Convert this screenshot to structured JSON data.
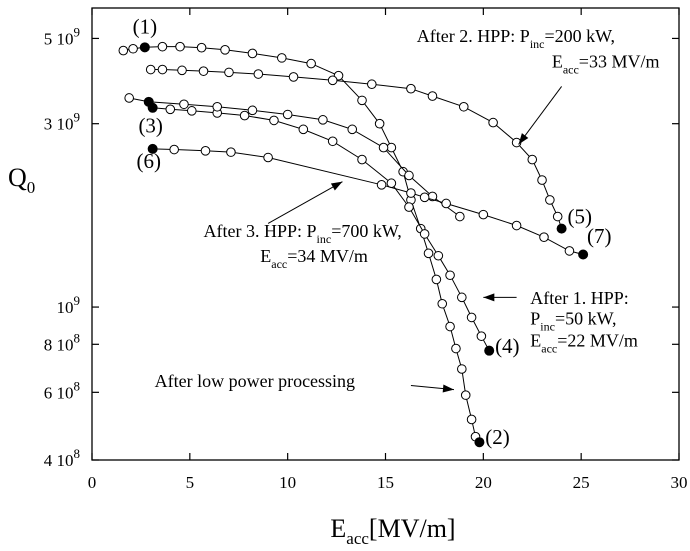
{
  "chart_data": {
    "type": "scatter",
    "xlabel": {
      "main": "E",
      "sub": "acc",
      "rest": "[MV/m]"
    },
    "ylabel": {
      "main": "Q",
      "sub": "0"
    },
    "xlim": [
      0,
      30
    ],
    "ylim": [
      400000000,
      6000000000
    ],
    "yscale": "log",
    "xticks": [
      0,
      5,
      10,
      15,
      20,
      25,
      30
    ],
    "xtick_labels": [
      "0",
      "5",
      "10",
      "15",
      "20",
      "25",
      "30"
    ],
    "yticks": [
      {
        "value": 5000000000,
        "mantissa": "5",
        "exp": "9"
      },
      {
        "value": 3000000000,
        "mantissa": "3",
        "exp": "9"
      },
      {
        "value": 1000000000,
        "mantissa": "",
        "exp": "9"
      },
      {
        "value": 800000000,
        "mantissa": "8",
        "exp": "8"
      },
      {
        "value": 600000000,
        "mantissa": "6",
        "exp": "8"
      },
      {
        "value": 400000000,
        "mantissa": "4",
        "exp": "8"
      }
    ],
    "series": [
      {
        "x": [
          1.6,
          2.1,
          2.7,
          3.6,
          4.5,
          5.6,
          6.8,
          8.2,
          9.7,
          11.2,
          12.6,
          13.8,
          14.7,
          15.3,
          15.9,
          16.3,
          16.8,
          17.2,
          17.6,
          17.9,
          18.3,
          18.6,
          18.9,
          19.1,
          19.4,
          19.6,
          19.8
        ],
        "y": [
          4650000000,
          4700000000,
          4740000000,
          4760000000,
          4760000000,
          4730000000,
          4670000000,
          4570000000,
          4450000000,
          4300000000,
          4000000000,
          3450000000,
          3000000000,
          2600000000,
          2250000000,
          1900000000,
          1600000000,
          1380000000,
          1180000000,
          1020000000,
          890000000,
          780000000,
          690000000,
          590000000,
          510000000,
          460000000,
          445000000
        ],
        "filled": [
          false,
          false,
          true,
          false,
          false,
          false,
          false,
          false,
          false,
          false,
          false,
          false,
          false,
          false,
          false,
          false,
          false,
          false,
          false,
          false,
          false,
          false,
          false,
          false,
          false,
          false,
          true
        ]
      },
      {
        "x": [
          3.1,
          4.0,
          5.1,
          6.4,
          7.8,
          9.3,
          10.8,
          12.3,
          13.8,
          15.3,
          16.2,
          17.0,
          17.7,
          18.3,
          18.9,
          19.4,
          19.9,
          20.3
        ],
        "y": [
          3300000000,
          3270000000,
          3240000000,
          3200000000,
          3150000000,
          3060000000,
          2900000000,
          2700000000,
          2420000000,
          2100000000,
          1820000000,
          1550000000,
          1360000000,
          1210000000,
          1060000000,
          940000000,
          840000000,
          770000000
        ],
        "filled": [
          true,
          false,
          false,
          false,
          false,
          false,
          false,
          false,
          false,
          false,
          false,
          false,
          false,
          false,
          false,
          false,
          false,
          true
        ]
      },
      {
        "x": [
          3.0,
          3.6,
          4.6,
          5.7,
          7.0,
          8.5,
          10.3,
          12.3,
          14.3,
          16.3,
          17.4,
          19.0,
          20.5,
          21.7,
          22.5,
          23.0,
          23.4,
          23.8,
          24.0
        ],
        "y": [
          4150000000,
          4150000000,
          4130000000,
          4110000000,
          4080000000,
          4040000000,
          3970000000,
          3890000000,
          3800000000,
          3700000000,
          3540000000,
          3320000000,
          3020000000,
          2680000000,
          2420000000,
          2140000000,
          1900000000,
          1720000000,
          1600000000
        ],
        "filled": [
          false,
          false,
          false,
          false,
          false,
          false,
          false,
          false,
          false,
          false,
          false,
          false,
          false,
          false,
          false,
          false,
          false,
          false,
          true
        ]
      },
      {
        "x": [
          1.9,
          2.9,
          4.7,
          6.4,
          8.2,
          10.0,
          11.8,
          13.3,
          14.9,
          16.2,
          17.4,
          18.8
        ],
        "y": [
          3500000000,
          3420000000,
          3370000000,
          3320000000,
          3250000000,
          3170000000,
          3070000000,
          2900000000,
          2600000000,
          2200000000,
          1940000000,
          1720000000
        ],
        "filled": [
          false,
          true,
          false,
          false,
          false,
          false,
          false,
          false,
          false,
          false,
          false,
          false
        ]
      },
      {
        "x": [
          3.1,
          4.2,
          5.8,
          7.1,
          9.0,
          14.8,
          16.3,
          17.0,
          18.1,
          20.0,
          21.7,
          23.1,
          24.4,
          25.1
        ],
        "y": [
          2580000000,
          2570000000,
          2550000000,
          2530000000,
          2450000000,
          2080000000,
          1980000000,
          1930000000,
          1860000000,
          1740000000,
          1630000000,
          1520000000,
          1400000000,
          1370000000
        ],
        "filled": [
          true,
          false,
          false,
          false,
          false,
          false,
          false,
          false,
          false,
          false,
          false,
          false,
          false,
          true
        ]
      }
    ],
    "point_labels": [
      {
        "text": "(1)",
        "x": 2.7,
        "y": 5150000000,
        "anchor": "middle"
      },
      {
        "text": "(3)",
        "x": 3.0,
        "y": 2850000000,
        "anchor": "middle"
      },
      {
        "text": "(6)",
        "x": 2.9,
        "y": 2300000000,
        "anchor": "middle"
      },
      {
        "text": "(5)",
        "x": 24.3,
        "y": 1650000000,
        "anchor": "start"
      },
      {
        "text": "(7)",
        "x": 25.3,
        "y": 1470000000,
        "anchor": "start"
      },
      {
        "text": "(4)",
        "x": 20.6,
        "y": 760000000,
        "anchor": "start"
      },
      {
        "text": "(2)",
        "x": 20.1,
        "y": 440000000,
        "anchor": "start"
      }
    ],
    "annotations": [
      {
        "lines": [
          {
            "text": "After 2. HPP: P",
            "sub": "inc",
            "after": "=200 kW,",
            "x": 16.6,
            "y": 4900000000
          },
          {
            "text": "E",
            "sub": "acc",
            "after": "=33 MV/m",
            "x": 23.5,
            "y": 4200000000
          }
        ],
        "arrow": {
          "x1": 24.0,
          "y1": 3750000000,
          "x2": 21.8,
          "y2": 2650000000
        }
      },
      {
        "lines": [
          {
            "text": "After 3. HPP: P",
            "sub": "inc",
            "after": "=700 kW,",
            "x": 5.7,
            "y": 1520000000
          },
          {
            "text": "E",
            "sub": "acc",
            "after": "=34 MV/m",
            "x": 8.6,
            "y": 1310000000
          }
        ],
        "arrow": {
          "x1": 9.0,
          "y1": 1650000000,
          "x2": 12.8,
          "y2": 2120000000
        }
      },
      {
        "lines": [
          {
            "text": "After 1. HPP:",
            "sub": "",
            "after": "",
            "x": 22.4,
            "y": 1020000000
          },
          {
            "text": "P",
            "sub": "inc",
            "after": "=50 kW,",
            "x": 22.4,
            "y": 900000000
          },
          {
            "text": "E",
            "sub": "acc",
            "after": "=22 MV/m",
            "x": 22.4,
            "y": 790000000
          }
        ],
        "arrow": {
          "x1": 21.7,
          "y1": 1060000000,
          "x2": 20.0,
          "y2": 1060000000
        }
      },
      {
        "lines": [
          {
            "text": "After low power processing",
            "sub": "",
            "after": "",
            "x": 3.2,
            "y": 620000000
          }
        ],
        "arrow": {
          "x1": 16.3,
          "y1": 625000000,
          "x2": 18.5,
          "y2": 610000000
        }
      }
    ]
  }
}
